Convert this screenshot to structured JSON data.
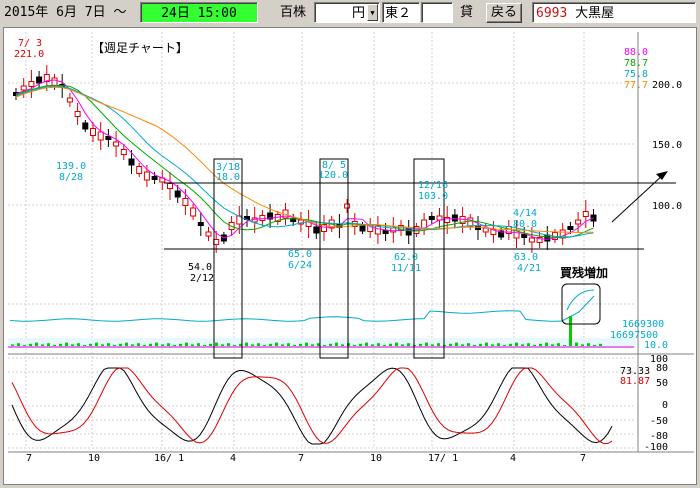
{
  "toolbar": {
    "date_text": "2015年 6月 7日 ～",
    "current_date": "24日 15:00",
    "unit_label": "百株",
    "currency_value": "円",
    "market_value": "東２",
    "lend_label": "貸",
    "back_button": "戻る",
    "stock_code": "6993",
    "stock_name": "大黒屋",
    "accent_green": "#33ff33",
    "code_color": "#d01010"
  },
  "chart_data": {
    "type": "candlestick",
    "title": "【週足チャート】",
    "price_axis_ticks": [
      "200.0",
      "150.0",
      "100.0"
    ],
    "ma_values": [
      {
        "label": "88.0",
        "color": "#ff00ff"
      },
      {
        "label": "78.7",
        "color": "#00aa00"
      },
      {
        "label": "75.8",
        "color": "#00aacc"
      },
      {
        "label": "77.7",
        "color": "#ff8800"
      }
    ],
    "annotations": [
      {
        "date": "7/ 3",
        "price": "221.0"
      },
      {
        "price": "139.0",
        "date": "8/28"
      },
      {
        "price": "54.0",
        "date": "2/12"
      },
      {
        "date": "3/18",
        "price": "18.0"
      },
      {
        "price": "65.0",
        "date": "6/24"
      },
      {
        "date": "8/ 5",
        "price": "120.0"
      },
      {
        "price": "62.0",
        "date": "11/11"
      },
      {
        "date": "12/16",
        "price": "103.0"
      },
      {
        "date": "4/14",
        "price": "80.0"
      },
      {
        "price": "63.0",
        "date": "4/21"
      }
    ],
    "callout": "買残増加",
    "volume_values": [
      "1669300",
      "16697500",
      "10.0"
    ],
    "stoch_ticks": [
      "100",
      "80",
      "50",
      "0",
      "-50",
      "-80",
      "-100"
    ],
    "stoch_values": [
      {
        "label": "73.33",
        "color": "#000000"
      },
      {
        "label": "81.87",
        "color": "#dd0000"
      }
    ],
    "x_labels": [
      "7",
      "10",
      "16/ 1",
      "4",
      "7",
      "10",
      "17/ 1",
      "4",
      "7"
    ]
  }
}
